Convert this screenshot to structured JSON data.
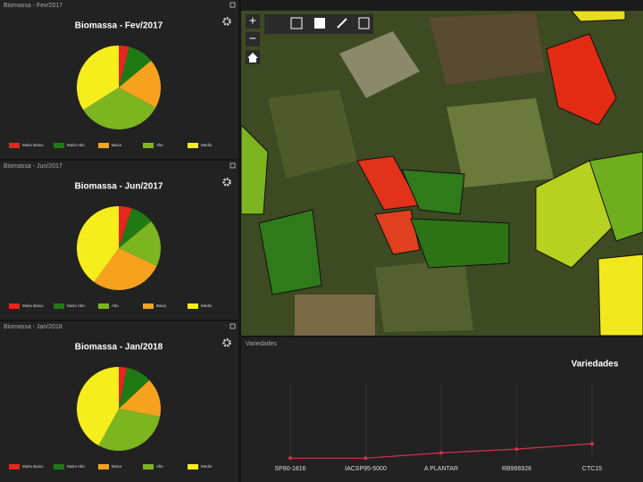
{
  "chart_data": [
    {
      "type": "pie",
      "panel_title": "Biomassa - Fev/2017",
      "title": "Biomassa - Fev/2017",
      "categories": [
        "Muito Baixo",
        "Muito Alto",
        "Baixo",
        "Alto",
        "Medio"
      ],
      "values": [
        4,
        10,
        19,
        33,
        34
      ],
      "colors": [
        "#e5261c",
        "#1f7a14",
        "#f6a21f",
        "#7cb51f",
        "#f6ee1c"
      ]
    },
    {
      "type": "pie",
      "panel_title": "Biomassa - Jun/2017",
      "title": "Biomassa - Jun/2017",
      "categories": [
        "Muito Baixo",
        "Muito Alto",
        "Alto",
        "Baixo",
        "Medio"
      ],
      "values": [
        5,
        9,
        18,
        28,
        40
      ],
      "colors": [
        "#e5261c",
        "#1f7a14",
        "#7cb51f",
        "#f6a21f",
        "#f6ee1c"
      ]
    },
    {
      "type": "pie",
      "panel_title": "Biomassa - Jan/2018",
      "title": "Biomassa - Jan/2018",
      "categories": [
        "Muito Baixo",
        "Muito Alto",
        "Baixo",
        "Alto",
        "Medio"
      ],
      "values": [
        3,
        10,
        15,
        30,
        42
      ],
      "colors": [
        "#e5261c",
        "#1f7a14",
        "#f6a21f",
        "#7cb51f",
        "#f6ee1c"
      ]
    },
    {
      "type": "line",
      "panel_title": "Variedades",
      "title": "Variedades",
      "categories": [
        "SP80-1816",
        "IACSP95-5000",
        "A PLANTAR",
        "RB966928",
        "CTC15"
      ],
      "values": [
        2,
        2,
        9,
        14,
        21
      ],
      "color": "#d9304a",
      "ylim": [
        0,
        100
      ]
    }
  ]
}
